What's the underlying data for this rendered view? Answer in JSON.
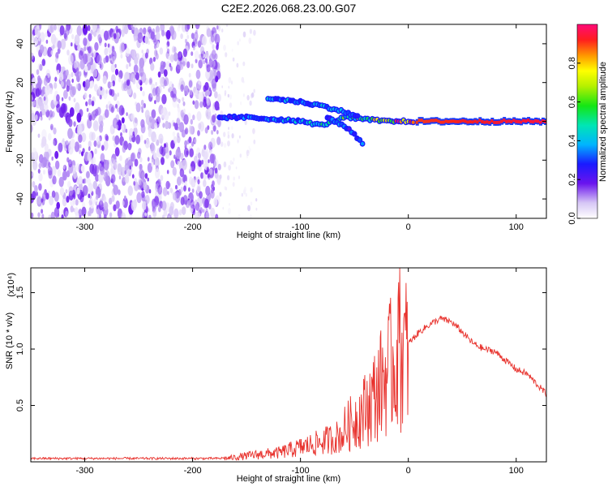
{
  "figure": {
    "title": "C2E2.2026.068.23.00.G07"
  },
  "chart_data": [
    {
      "type": "heatmap",
      "xlabel": "Height of straight line (km)",
      "ylabel": "Frequency (Hz)",
      "xlim": [
        -350,
        128
      ],
      "ylim": [
        -50,
        50
      ],
      "xticks": [
        -300,
        -200,
        -100,
        0,
        100
      ],
      "xtick_labels": [
        "-300",
        "-200",
        "-100",
        "0",
        "100"
      ],
      "yticks": [
        -40,
        -20,
        0,
        20,
        40
      ],
      "ytick_labels": [
        "-40",
        "-20",
        "0",
        "20",
        "40"
      ],
      "colorbar": {
        "label": "Normalized spectral amplitude",
        "range": [
          0,
          1
        ],
        "ticks": [
          0.0,
          0.2,
          0.4,
          0.6,
          0.8
        ],
        "tick_labels": [
          "0.0",
          "0.2",
          "0.4",
          "0.6",
          "0.8"
        ]
      },
      "features": [
        {
          "name": "broadband noise",
          "x_range": [
            -350,
            -175
          ],
          "freq_range": [
            -50,
            50
          ],
          "amplitude": 0.05
        },
        {
          "name": "sparse noise",
          "x_range": [
            -175,
            -140
          ],
          "freq_range": [
            -50,
            50
          ],
          "amplitude": 0.02
        },
        {
          "name": "main track",
          "points": [
            [
              -175,
              2
            ],
            [
              -150,
              2
            ],
            [
              -120,
              1
            ],
            [
              -100,
              0
            ],
            [
              -80,
              -2
            ],
            [
              -60,
              2
            ],
            [
              -40,
              1
            ],
            [
              -20,
              0
            ],
            [
              0,
              0
            ],
            [
              128,
              0
            ]
          ],
          "amplitude": [
            0.25,
            0.3,
            0.35,
            0.4,
            0.45,
            0.5,
            0.55,
            0.75,
            0.9,
            0.95
          ]
        },
        {
          "name": "upper branch",
          "points": [
            [
              -130,
              12
            ],
            [
              -100,
              10
            ],
            [
              -80,
              8
            ],
            [
              -60,
              5
            ],
            [
              -45,
              2
            ]
          ],
          "amplitude": 0.35
        },
        {
          "name": "descending branch",
          "points": [
            [
              -75,
              2
            ],
            [
              -55,
              -4
            ],
            [
              -45,
              -10
            ],
            [
              -40,
              -14
            ]
          ],
          "amplitude": 0.3
        }
      ]
    },
    {
      "type": "line",
      "xlabel": "Height of straight line (km)",
      "ylabel": "SNR (10 * v/v)",
      "y_multiplier": "(x10⁴)",
      "xlim": [
        -350,
        128
      ],
      "ylim": [
        0,
        1.72
      ],
      "xticks": [
        -300,
        -200,
        -100,
        0,
        100
      ],
      "xtick_labels": [
        "-300",
        "-200",
        "-100",
        "0",
        "100"
      ],
      "yticks": [
        0.5,
        1.0,
        1.5
      ],
      "ytick_labels": [
        "0.5",
        "1.0",
        "1.5"
      ],
      "series": [
        {
          "name": "SNR",
          "color": "#e8332e",
          "x": [
            -350,
            -300,
            -250,
            -200,
            -175,
            -160,
            -140,
            -120,
            -100,
            -80,
            -60,
            -40,
            -30,
            -20,
            -10,
            0,
            10,
            20,
            30,
            40,
            50,
            60,
            70,
            80,
            90,
            100,
            110,
            120,
            128
          ],
          "y": [
            0.03,
            0.03,
            0.03,
            0.03,
            0.03,
            0.05,
            0.08,
            0.1,
            0.16,
            0.22,
            0.3,
            0.5,
            0.65,
            0.85,
            1.0,
            1.05,
            1.15,
            1.22,
            1.27,
            1.24,
            1.15,
            1.05,
            1.0,
            0.98,
            0.9,
            0.82,
            0.78,
            0.68,
            0.6
          ]
        }
      ]
    }
  ]
}
